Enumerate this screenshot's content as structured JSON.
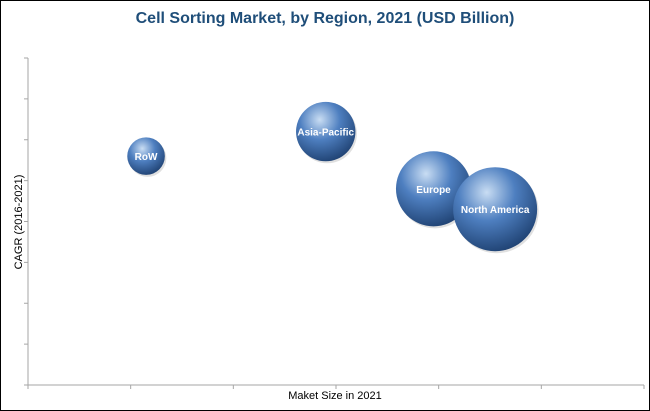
{
  "chart_data": {
    "type": "bubble",
    "title": "Cell Sorting Market, by Region, 2021 (USD Billion)",
    "xlabel": "Maket Size in 2021",
    "ylabel": "CAGR (2016-2021)",
    "xlim": [
      0,
      6
    ],
    "ylim": [
      0,
      8
    ],
    "x_ticks_count": 6,
    "y_ticks_count": 8,
    "grid": false,
    "colors": {
      "bubble_highlight": "#c9ddf3",
      "bubble_mid": "#4e7fc0",
      "bubble_dark": "#1d3f6f",
      "title": "#1f4e79",
      "axis": "#a6a6a6"
    },
    "series": [
      {
        "label": "RoW",
        "x": 1.15,
        "y": 5.6,
        "size": 0.6
      },
      {
        "label": "Asia-Pacific",
        "x": 2.9,
        "y": 6.2,
        "size": 1.5
      },
      {
        "label": "Europe",
        "x": 3.95,
        "y": 4.8,
        "size": 2.4
      },
      {
        "label": "North America",
        "x": 4.55,
        "y": 4.3,
        "size": 3.0
      }
    ]
  }
}
